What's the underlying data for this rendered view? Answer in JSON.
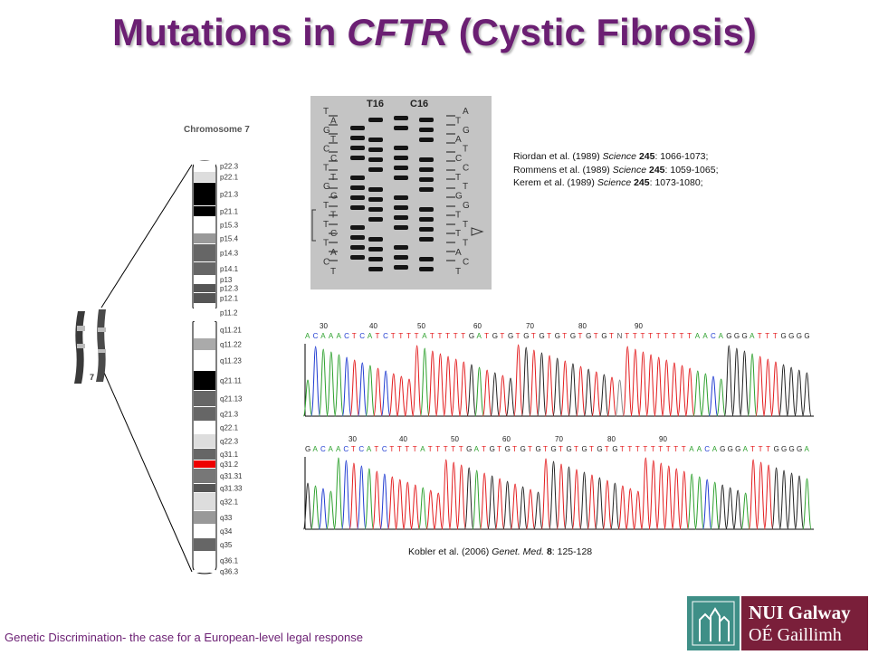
{
  "slide": {
    "title_pre": "Mutations in ",
    "title_em": "CFTR",
    "title_post": " (Cystic Fibrosis)"
  },
  "chromosome": {
    "heading": "Chromosome 7",
    "small_label": "7",
    "bands": [
      "p22.3",
      "p22.1",
      "p21.3",
      "p21.1",
      "p15.3",
      "p15.4",
      "p14.3",
      "p14.1",
      "p13",
      "p12.3",
      "p12.1",
      "p11.2",
      "q11.21",
      "q11.22",
      "q11.23",
      "q21.11",
      "q21.13",
      "q21.3",
      "q22.1",
      "q22.3",
      "q31.1",
      "q31.2",
      "q31.31",
      "q31.33",
      "q32.1",
      "q33",
      "q34",
      "q35",
      "q36.1",
      "q36.3"
    ]
  },
  "gel": {
    "lane_labels": [
      "T16",
      "C16"
    ],
    "left_bases": [
      "T",
      "A",
      "G",
      "T",
      "C",
      "C",
      "T",
      "T",
      "G",
      "G",
      "T",
      "T",
      "T",
      "C",
      "T",
      "A",
      "C",
      "T"
    ],
    "right_bases": [
      "A",
      "T",
      "G",
      "A",
      "T",
      "C",
      "C",
      "T",
      "T",
      "G",
      "G",
      "T",
      "T",
      "T",
      "T",
      "A",
      "C",
      "T"
    ]
  },
  "references": [
    {
      "authors": "Riordan et al. (1989)",
      "journal": "Science",
      "volume": "245",
      "pages": ": 1066-1073;"
    },
    {
      "authors": "Rommens et al. (1989)",
      "journal": "Science",
      "volume": "245",
      "pages": ": 1059-1065;"
    },
    {
      "authors": "Kerem et al. (1989)",
      "journal": "Science",
      "volume": "245",
      "pages": ": 1073-1080;"
    }
  ],
  "traces": [
    {
      "positions": [
        "30",
        "40",
        "50",
        "60",
        "70",
        "80",
        "90"
      ],
      "sequence": "ACAAACTCATCTTTTATTTTTGATGTGTGTGTGTGTGTGTNTTTTTTTTTAACAGGGATTTGGGG"
    },
    {
      "positions": [
        "30",
        "40",
        "50",
        "60",
        "70",
        "80",
        "90"
      ],
      "sequence": "GACAACTCATCTTTTATTTTTGATGTGTGTGTGTGTGTGTGTTTTTTTTTAACAGGGATTTGGGGA"
    }
  ],
  "kobler": {
    "authors": "Kobler et al. (2006)",
    "journal": "Genet. Med.",
    "volume": "8",
    "pages": ": 125-128"
  },
  "footer": "Genetic Discrimination- the case for a European-level legal response",
  "logo": {
    "line1": "NUI Galway",
    "line2": "OÉ Gaillimh"
  },
  "colors": {
    "title": "#6b1f73",
    "highlight_band": "#ff0000",
    "A": "#2ca02c",
    "C": "#1f3bd1",
    "G": "#222222",
    "T": "#e31a1c"
  }
}
